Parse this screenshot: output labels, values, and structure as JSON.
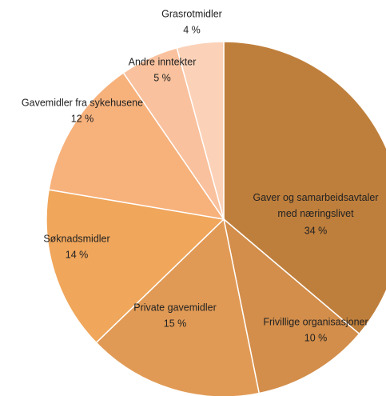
{
  "chart_data": {
    "type": "pie",
    "categories": [
      "Gaver og samarbeidsavtaler med næringslivet",
      "Frivillige organisasjoner",
      "Private gavemidler",
      "Søknadsmidler",
      "Gavemidler fra sykehusene",
      "Andre inntekter",
      "Grasrotmidler"
    ],
    "values": [
      34,
      10,
      15,
      14,
      12,
      5,
      4
    ],
    "value_labels": [
      "34 %",
      "10 %",
      "15 %",
      "14 %",
      "12 %",
      "5 %",
      "4 %"
    ],
    "colors": [
      "#bf7f3c",
      "#d38e4b",
      "#e19a55",
      "#f0a65b",
      "#f7b17b",
      "#f9c19d",
      "#fbd2b8"
    ]
  }
}
